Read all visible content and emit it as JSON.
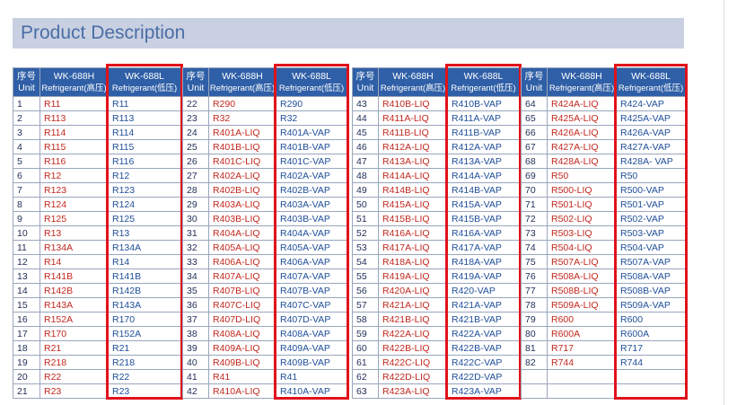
{
  "title": "Product Description",
  "blocks": [
    {
      "header": [
        [
          "序号",
          "Unit"
        ],
        [
          "WK-688H",
          "Refrigerant(高压)"
        ],
        [
          "WK-688L",
          "Refrigerant(低压)"
        ]
      ],
      "rows": [
        [
          "1",
          "R11",
          "R11"
        ],
        [
          "2",
          "R113",
          "R113"
        ],
        [
          "3",
          "R114",
          "R114"
        ],
        [
          "4",
          "R115",
          "R115"
        ],
        [
          "5",
          "R116",
          "R116"
        ],
        [
          "6",
          "R12",
          "R12"
        ],
        [
          "7",
          "R123",
          "R123"
        ],
        [
          "8",
          "R124",
          "R124"
        ],
        [
          "9",
          "R125",
          "R125"
        ],
        [
          "10",
          "R13",
          "R13"
        ],
        [
          "11",
          "R134A",
          "R134A"
        ],
        [
          "12",
          "R14",
          "R14"
        ],
        [
          "13",
          "R141B",
          "R141B"
        ],
        [
          "14",
          "R142B",
          "R142B"
        ],
        [
          "15",
          "R143A",
          "R143A"
        ],
        [
          "16",
          "R152A",
          "R170"
        ],
        [
          "17",
          "R170",
          "R152A"
        ],
        [
          "18",
          "R21",
          "R21"
        ],
        [
          "19",
          "R218",
          "R218"
        ],
        [
          "20",
          "R22",
          "R22"
        ],
        [
          "21",
          "R23",
          "R23"
        ]
      ]
    },
    {
      "header": [
        [
          "序号",
          "Unit"
        ],
        [
          "WK-688H",
          "Refrigerant(高压)"
        ],
        [
          "WK-688L",
          "Refrigerant(低压)"
        ]
      ],
      "rows": [
        [
          "22",
          "R290",
          "R290"
        ],
        [
          "23",
          "R32",
          "R32"
        ],
        [
          "24",
          "R401A-LIQ",
          "R401A-VAP"
        ],
        [
          "25",
          "R401B-LIQ",
          "R401B-VAP"
        ],
        [
          "26",
          "R401C-LIQ",
          "R401C-VAP"
        ],
        [
          "27",
          "R402A-LIQ",
          "R402A-VAP"
        ],
        [
          "28",
          "R402B-LIQ",
          "R402B-VAP"
        ],
        [
          "29",
          "R403A-LIQ",
          "R403A-VAP"
        ],
        [
          "30",
          "R403B-LIQ",
          "R403B-VAP"
        ],
        [
          "31",
          "R404A-LIQ",
          "R404A-VAP"
        ],
        [
          "32",
          "R405A-LIQ",
          "R405A-VAP"
        ],
        [
          "33",
          "R406A-LIQ",
          "R406A-VAP"
        ],
        [
          "34",
          "R407A-LIQ",
          "R407A-VAP"
        ],
        [
          "35",
          "R407B-LIQ",
          "R407B-VAP"
        ],
        [
          "36",
          "R407C-LIQ",
          "R407C-VAP"
        ],
        [
          "37",
          "R407D-LIQ",
          "R407D-VAP"
        ],
        [
          "38",
          "R408A-LIQ",
          "R408A-VAP"
        ],
        [
          "39",
          "R409A-LIQ",
          "R409A-VAP"
        ],
        [
          "40",
          "R409B-LIQ",
          "R409B-VAP"
        ],
        [
          "41",
          "R41",
          "R41"
        ],
        [
          "42",
          "R410A-LIQ",
          "R410A-VAP"
        ]
      ]
    },
    {
      "header": [
        [
          "序号",
          "Unit"
        ],
        [
          "WK-688H",
          "Refrigerant(高压)"
        ],
        [
          "WK-688L",
          "Refrigerant(低压)"
        ]
      ],
      "rows": [
        [
          "43",
          "R410B-LIQ",
          "R410B-VAP"
        ],
        [
          "44",
          "R411A-LIQ",
          "R411A-VAP"
        ],
        [
          "45",
          "R411B-LIQ",
          "R411B-VAP"
        ],
        [
          "46",
          "R412A-LIQ",
          "R412A-VAP"
        ],
        [
          "47",
          "R413A-LIQ",
          "R413A-VAP"
        ],
        [
          "48",
          "R414A-LIQ",
          "R414A-VAP"
        ],
        [
          "49",
          "R414B-LIQ",
          "R414B-VAP"
        ],
        [
          "50",
          "R415A-LIQ",
          "R415A-VAP"
        ],
        [
          "51",
          "R415B-LIQ",
          "R415B-VAP"
        ],
        [
          "52",
          "R416A-LIQ",
          "R416A-VAP"
        ],
        [
          "53",
          "R417A-LIQ",
          "R417A-VAP"
        ],
        [
          "54",
          "R418A-LIQ",
          "R418A-VAP"
        ],
        [
          "55",
          "R419A-LIQ",
          "R419A-VAP"
        ],
        [
          "56",
          "R420A-LIQ",
          "R420-VAP"
        ],
        [
          "57",
          "R421A-LIQ",
          "R421A-VAP"
        ],
        [
          "58",
          "R421B-LIQ",
          "R421B-VAP"
        ],
        [
          "59",
          "R422A-LIQ",
          "R422A-VAP"
        ],
        [
          "60",
          "R422B-LIQ",
          "R422B-VAP"
        ],
        [
          "61",
          "R422C-LIQ",
          "R422C-VAP"
        ],
        [
          "62",
          "R422D-LIQ",
          "R422D-VAP"
        ],
        [
          "63",
          "R423A-LIQ",
          "R423A-VAP"
        ]
      ]
    },
    {
      "header": [
        [
          "序号",
          "Unit"
        ],
        [
          "WK-688H",
          "Refrigerant(高压)"
        ],
        [
          "WK-688L",
          "Refrigerant(低压)"
        ]
      ],
      "rows": [
        [
          "64",
          "R424A-LIQ",
          "R424-VAP"
        ],
        [
          "65",
          "R425A-LIQ",
          "R425A-VAP"
        ],
        [
          "66",
          "R426A-LIQ",
          "R426A-VAP"
        ],
        [
          "67",
          "R427A-LIQ",
          "R427A-VAP"
        ],
        [
          "68",
          "R428A-LIQ",
          "R428A- VAP"
        ],
        [
          "69",
          "R50",
          "R50"
        ],
        [
          "70",
          "R500-LIQ",
          "R500-VAP"
        ],
        [
          "71",
          "R501-LIQ",
          "R501-VAP"
        ],
        [
          "72",
          "R502-LIQ",
          "R502-VAP"
        ],
        [
          "73",
          "R503-LIQ",
          "R503-VAP"
        ],
        [
          "74",
          "R504-LIQ",
          "R504-VAP"
        ],
        [
          "75",
          "R507A-LIQ",
          "R507A-VAP"
        ],
        [
          "76",
          "R508A-LIQ",
          "R508A-VAP"
        ],
        [
          "77",
          "R508B-LIQ",
          "R508B-VAP"
        ],
        [
          "78",
          "R509A-LIQ",
          "R509A-VAP"
        ],
        [
          "79",
          "R600",
          "R600"
        ],
        [
          "80",
          "R600A",
          "R600A"
        ],
        [
          "81",
          "R717",
          "R717"
        ],
        [
          "82",
          "R744",
          "R744"
        ]
      ]
    }
  ]
}
